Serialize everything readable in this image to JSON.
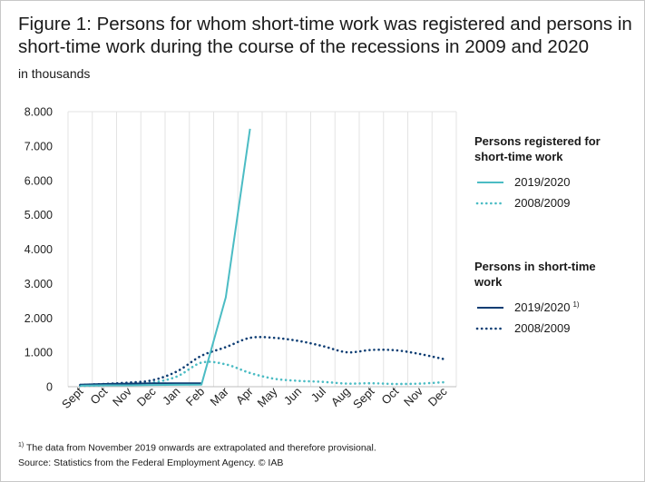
{
  "figure": {
    "title": "Figure 1: Persons for whom short-time work was registered and persons in short-time work during the course of the recessions in 2009 and 2020",
    "subtitle": "in thousands"
  },
  "chart_data": {
    "type": "line",
    "title": "Figure 1: Persons for whom short-time work was registered and persons in short-time work during the course of the recessions in 2009 and 2020",
    "subtitle": "in thousands",
    "xlabel": "",
    "ylabel": "",
    "categories": [
      "Sept",
      "Oct",
      "Nov",
      "Dec",
      "Jan",
      "Feb",
      "Mar",
      "Apr",
      "May",
      "Jun",
      "Jul",
      "Aug",
      "Sept",
      "Oct",
      "Nov",
      "Dec"
    ],
    "y_ticks": [
      "8.000",
      "7.000",
      "6.000",
      "5.000",
      "4.000",
      "3.000",
      "2.000",
      "1.000",
      "0"
    ],
    "ylim": [
      0,
      8000
    ],
    "grid": "vertical",
    "legend_position": "right",
    "legend_groups": [
      {
        "heading": "Persons registered for short-time work",
        "series": [
          "registered_2019_2020",
          "registered_2008_2009"
        ]
      },
      {
        "heading": "Persons in short-time work",
        "series": [
          "in_stw_2019_2020",
          "in_stw_2008_2009"
        ]
      }
    ],
    "series": [
      {
        "id": "registered_2019_2020",
        "name": "2019/2020",
        "style": "solid",
        "color": "#4bbcc4",
        "values": [
          30,
          40,
          40,
          50,
          55,
          60,
          2600,
          7500,
          null,
          null,
          null,
          null,
          null,
          null,
          null,
          null
        ]
      },
      {
        "id": "registered_2008_2009",
        "name": "2008/2009",
        "style": "dotted",
        "color": "#4bbcc4",
        "values": [
          20,
          40,
          70,
          120,
          300,
          700,
          650,
          400,
          230,
          170,
          140,
          90,
          100,
          80,
          90,
          130
        ]
      },
      {
        "id": "in_stw_2019_2020",
        "name": "2019/2020",
        "name_sup": "1)",
        "style": "solid",
        "color": "#0d3d73",
        "values": [
          60,
          80,
          90,
          100,
          100,
          100,
          null,
          null,
          null,
          null,
          null,
          null,
          null,
          null,
          null,
          null
        ]
      },
      {
        "id": "in_stw_2008_2009",
        "name": "2008/2009",
        "style": "dotted",
        "color": "#0d3d73",
        "values": [
          50,
          80,
          120,
          190,
          450,
          900,
          1150,
          1420,
          1420,
          1330,
          1180,
          1000,
          1070,
          1060,
          950,
          800
        ]
      }
    ]
  },
  "footnotes": {
    "note_marker": "1)",
    "note_text": " The data from November 2019 onwards are extrapolated and therefore provisional.",
    "source": "Source: Statistics from the Federal Employment Agency. © IAB"
  }
}
